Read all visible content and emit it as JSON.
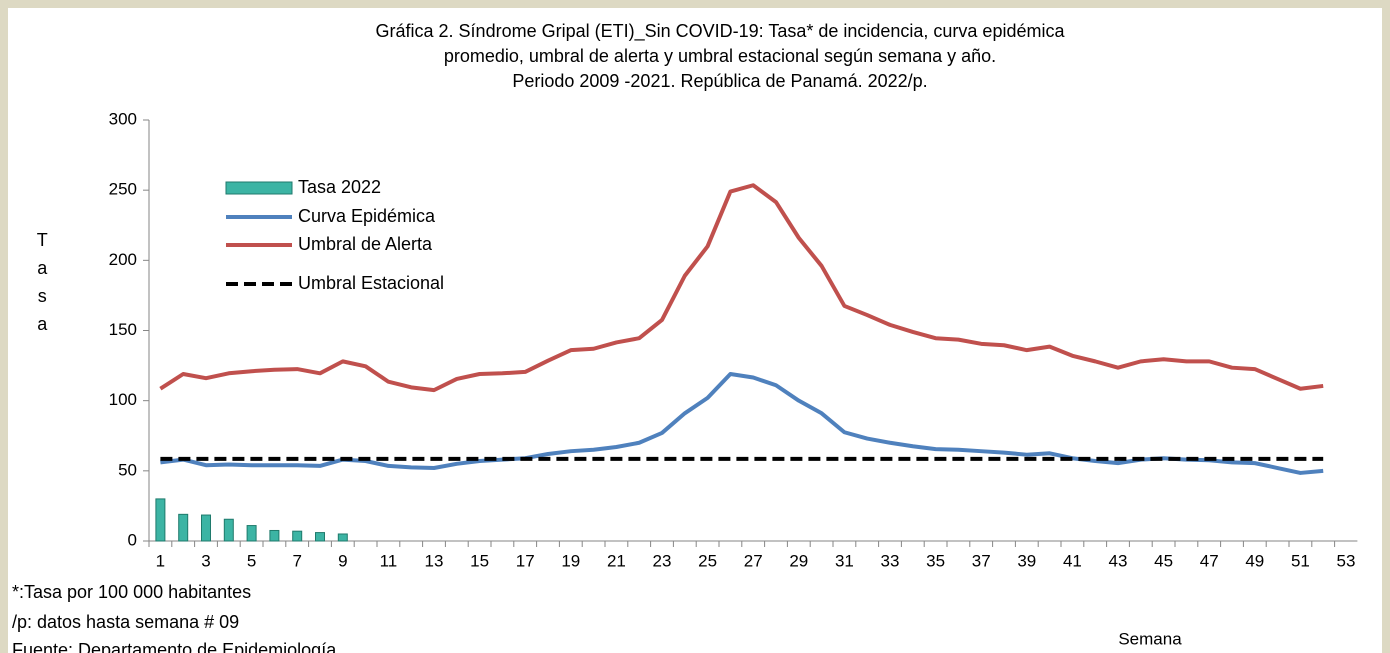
{
  "chart_data": {
    "type": "bar_line",
    "title_lines": [
      "Gráfica 2. Síndrome Gripal (ETI)_Sin COVID-19: Tasa* de incidencia, curva epidémica",
      "promedio, umbral de alerta y umbral estacional según semana y año.",
      "Periodo 2009 -2021.  República de Panamá. 2022/p."
    ],
    "y_label": "Tasa",
    "x_label": "Semana",
    "footnotes": [
      "*:Tasa por 100 000 habitantes",
      "/p: datos hasta semana # 09",
      "Fuente: Departamento de Epidemiología"
    ],
    "categories": [
      1,
      null,
      3,
      null,
      5,
      null,
      7,
      null,
      9,
      null,
      11,
      null,
      13,
      null,
      15,
      null,
      17,
      null,
      19,
      null,
      21,
      null,
      23,
      null,
      25,
      null,
      27,
      null,
      29,
      null,
      31,
      null,
      33,
      null,
      35,
      null,
      37,
      null,
      39,
      null,
      41,
      null,
      43,
      null,
      45,
      null,
      47,
      null,
      49,
      null,
      51,
      null,
      53
    ],
    "ylim": [
      0,
      300
    ],
    "yticks": [
      0,
      50,
      100,
      150,
      200,
      250,
      300
    ],
    "series": [
      {
        "name": "Tasa 2022",
        "kind": "bar",
        "color": "#3cb4a4",
        "values": [
          30,
          19,
          18.5,
          15.5,
          11,
          7.5,
          7,
          6,
          5,
          null,
          null,
          null,
          null,
          null,
          null,
          null,
          null,
          null,
          null,
          null,
          null,
          null,
          null,
          null,
          null,
          null,
          null,
          null,
          null,
          null,
          null,
          null,
          null,
          null,
          null,
          null,
          null,
          null,
          null,
          null,
          null,
          null,
          null,
          null,
          null,
          null,
          null,
          null,
          null,
          null,
          null,
          null,
          null
        ]
      },
      {
        "name": "Curva Epidémica",
        "kind": "line",
        "color": "#4f81bd",
        "values": [
          56,
          58,
          54,
          54.5,
          54,
          54,
          54,
          53.5,
          58,
          57,
          53.5,
          52.5,
          52,
          55,
          57,
          58,
          59,
          62,
          64,
          65,
          67,
          70,
          77,
          91,
          102,
          119,
          116.5,
          111,
          100,
          91,
          77.5,
          73,
          70,
          67.5,
          65.5,
          65,
          64,
          63,
          61.5,
          62.5,
          59,
          57,
          55.5,
          58,
          59,
          58,
          57.5,
          56,
          55.5,
          52,
          48.5,
          50,
          null
        ]
      },
      {
        "name": "Umbral de Alerta",
        "kind": "line",
        "color": "#c0504d",
        "values": [
          108.5,
          119,
          116,
          119.5,
          121,
          122,
          122.5,
          119.5,
          128,
          124.5,
          113.5,
          109.5,
          107.5,
          115.5,
          119,
          119.5,
          120.5,
          128.5,
          136,
          137,
          141.5,
          144.5,
          157.5,
          189,
          210,
          249,
          253.5,
          241.5,
          216,
          196,
          167.5,
          161,
          154,
          149,
          144.5,
          143.5,
          140.5,
          139.5,
          136,
          138.5,
          132,
          128,
          123.5,
          128,
          129.5,
          128,
          128,
          123.5,
          122.5,
          115.5,
          108.5,
          110.5,
          null
        ]
      },
      {
        "name": "Umbral Estacional",
        "kind": "dashed",
        "color": "#000000",
        "values": [
          58.5,
          58.5,
          58.5,
          58.5,
          58.5,
          58.5,
          58.5,
          58.5,
          58.5,
          58.5,
          58.5,
          58.5,
          58.5,
          58.5,
          58.5,
          58.5,
          58.5,
          58.5,
          58.5,
          58.5,
          58.5,
          58.5,
          58.5,
          58.5,
          58.5,
          58.5,
          58.5,
          58.5,
          58.5,
          58.5,
          58.5,
          58.5,
          58.5,
          58.5,
          58.5,
          58.5,
          58.5,
          58.5,
          58.5,
          58.5,
          58.5,
          58.5,
          58.5,
          58.5,
          58.5,
          58.5,
          58.5,
          58.5,
          58.5,
          58.5,
          58.5,
          58.5,
          null
        ]
      }
    ]
  }
}
